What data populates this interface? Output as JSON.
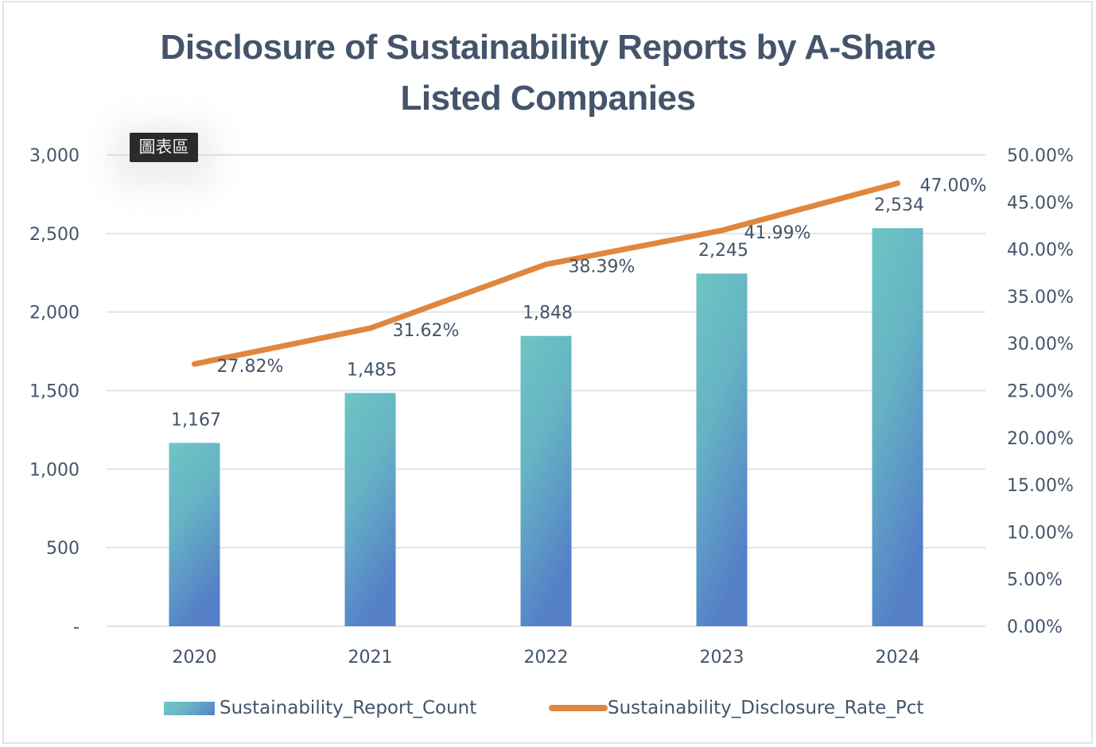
{
  "chart_data": {
    "type": "bar+line",
    "title": "Disclosure of Sustainability Reports by A-Share Listed Companies",
    "categories": [
      "2020",
      "2021",
      "2022",
      "2023",
      "2024"
    ],
    "series": [
      {
        "name": "Sustainability_Report_Count",
        "type": "bar",
        "axis": "left",
        "values": [
          1167,
          1485,
          1848,
          2245,
          2534
        ],
        "labels": [
          "1,167",
          "1,485",
          "1,848",
          "2,245",
          "2,534"
        ],
        "color_top": "#6EC5C4",
        "color_bottom": "#5580C8"
      },
      {
        "name": "Sustainability_Disclosure_Rate_Pct",
        "type": "line",
        "axis": "right",
        "values": [
          27.82,
          31.62,
          38.39,
          41.99,
          47.0
        ],
        "labels": [
          "27.82%",
          "31.62%",
          "38.39%",
          "41.99%",
          "47.00%"
        ],
        "color": "#E0873F"
      }
    ],
    "left_axis": {
      "range": [
        0,
        3000
      ],
      "ticks": [
        0,
        500,
        1000,
        1500,
        2000,
        2500,
        3000
      ],
      "tick_labels": [
        "-",
        "500",
        "1,000",
        "1,500",
        "2,000",
        "2,500",
        "3,000"
      ]
    },
    "right_axis": {
      "range": [
        0,
        50
      ],
      "ticks": [
        0,
        5,
        10,
        15,
        20,
        25,
        30,
        35,
        40,
        45,
        50
      ],
      "tick_labels": [
        "0.00%",
        "5.00%",
        "10.00%",
        "15.00%",
        "20.00%",
        "25.00%",
        "30.00%",
        "35.00%",
        "40.00%",
        "45.00%",
        "50.00%"
      ]
    },
    "xlabel": "",
    "ylabel": "",
    "grid": true,
    "legend_position": "bottom"
  },
  "title_line1": "Disclosure of Sustainability Reports by A-Share",
  "title_line2": "Listed Companies",
  "tooltip": "圖表區",
  "legend": {
    "bar_label": "Sustainability_Report_Count",
    "line_label": "Sustainability_Disclosure_Rate_Pct"
  }
}
